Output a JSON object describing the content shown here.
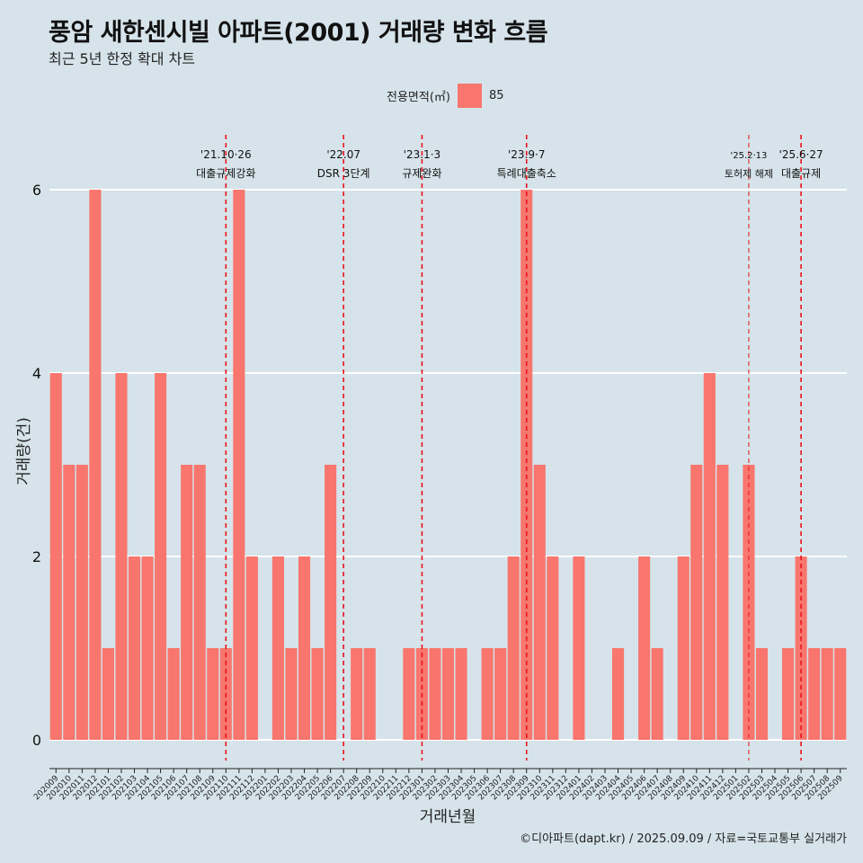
{
  "title": "풍암 새한센시빌 아파트(2001) 거래량 변화 흐름",
  "subtitle": "최근 5년 한정 확대 차트",
  "legend": {
    "title": "전용면적(㎡)",
    "items": [
      {
        "label": "85",
        "color": "#f8766d"
      }
    ]
  },
  "caption": "©디아파트(dapt.kr) / 2025.09.09 / 자료=국토교통부 실거래가",
  "chart_data": {
    "type": "bar",
    "xlabel": "거래년월",
    "ylabel": "거래량(건)",
    "ylim": [
      0,
      6
    ],
    "yticks": [
      0,
      2,
      4,
      6
    ],
    "bar_color": "#f8766d",
    "categories": [
      "202009",
      "202010",
      "202011",
      "202012",
      "202101",
      "202102",
      "202103",
      "202104",
      "202105",
      "202106",
      "202107",
      "202108",
      "202109",
      "202110",
      "202111",
      "202112",
      "202201",
      "202202",
      "202203",
      "202204",
      "202205",
      "202206",
      "202207",
      "202208",
      "202209",
      "202210",
      "202211",
      "202212",
      "202301",
      "202302",
      "202303",
      "202304",
      "202305",
      "202306",
      "202307",
      "202308",
      "202309",
      "202310",
      "202311",
      "202312",
      "202401",
      "202402",
      "202403",
      "202404",
      "202405",
      "202406",
      "202407",
      "202408",
      "202409",
      "202410",
      "202411",
      "202412",
      "202501",
      "202502",
      "202503",
      "202504",
      "202505",
      "202506",
      "202507",
      "202508",
      "202509"
    ],
    "values": [
      4,
      3,
      3,
      6,
      1,
      4,
      2,
      2,
      4,
      1,
      3,
      3,
      1,
      1,
      6,
      2,
      0,
      2,
      1,
      2,
      1,
      3,
      0,
      1,
      1,
      0,
      0,
      1,
      1,
      1,
      1,
      1,
      0,
      1,
      1,
      2,
      6,
      3,
      2,
      0,
      2,
      0,
      0,
      1,
      0,
      2,
      1,
      0,
      2,
      3,
      4,
      3,
      0,
      3,
      1,
      0,
      1,
      2,
      1,
      1,
      1
    ],
    "annotations": [
      {
        "category": "202110",
        "line1": "'21.10·26",
        "line2": "대출규제강화",
        "size": "normal"
      },
      {
        "category": "202207",
        "line1": "'22.07",
        "line2": "DSR 3단계",
        "size": "normal"
      },
      {
        "category": "202301",
        "line1": "'23.1·3",
        "line2": "규제완화",
        "size": "normal"
      },
      {
        "category": "202309",
        "line1": "'23.9·7",
        "line2": "특례대출축소",
        "size": "normal"
      },
      {
        "category": "202502",
        "line1": "'25.2·13",
        "line2": "토허제 해제",
        "size": "small"
      },
      {
        "category": "202506",
        "line1": "'25.6·27",
        "line2": "대출규제",
        "size": "normal"
      }
    ]
  }
}
